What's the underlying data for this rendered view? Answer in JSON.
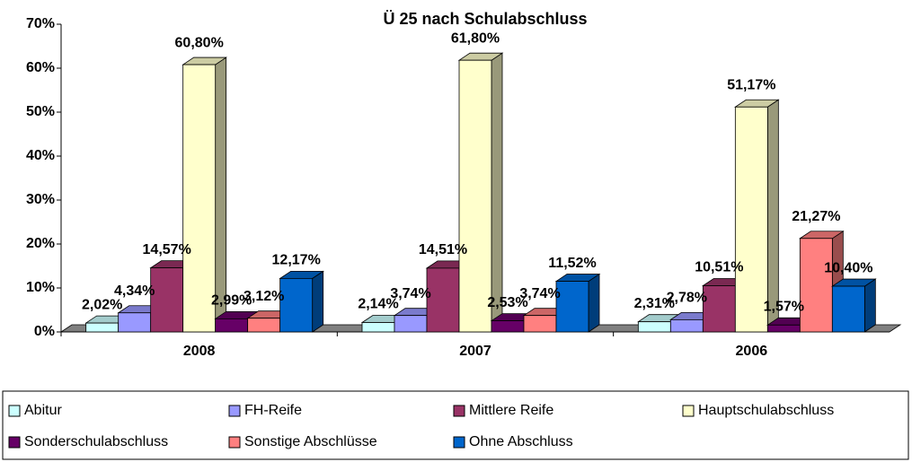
{
  "chart_data": {
    "type": "bar3d",
    "title": "Ü 25 nach Schulabschluss",
    "categories": [
      "2008",
      "2007",
      "2006"
    ],
    "ylim": [
      0,
      70
    ],
    "yticks": [
      {
        "value": 0,
        "label": "0%"
      },
      {
        "value": 10,
        "label": "10%"
      },
      {
        "value": 20,
        "label": "20%"
      },
      {
        "value": 30,
        "label": "30%"
      },
      {
        "value": 40,
        "label": "40%"
      },
      {
        "value": 50,
        "label": "50%"
      },
      {
        "value": 60,
        "label": "60%"
      },
      {
        "value": 70,
        "label": "70%"
      }
    ],
    "series": [
      {
        "name": "Abitur",
        "color": "#ccffff",
        "values": [
          2.02,
          2.14,
          2.31
        ],
        "value_labels": [
          "2,02%",
          "2,14%",
          "2,31%"
        ]
      },
      {
        "name": "FH-Reife",
        "color": "#9999ff",
        "values": [
          4.34,
          3.74,
          2.78
        ],
        "value_labels": [
          "4,34%",
          "3,74%",
          "2,78%"
        ]
      },
      {
        "name": "Mittlere Reife",
        "color": "#993366",
        "values": [
          14.57,
          14.51,
          10.51
        ],
        "value_labels": [
          "14,57%",
          "14,51%",
          "10,51%"
        ]
      },
      {
        "name": "Hauptschulabschluss",
        "color": "#ffffcc",
        "values": [
          60.8,
          61.8,
          51.17
        ],
        "value_labels": [
          "60,80%",
          "61,80%",
          "51,17%"
        ]
      },
      {
        "name": "Sonderschulabschluss",
        "color": "#660066",
        "values": [
          2.99,
          2.53,
          1.57
        ],
        "value_labels": [
          "2,99%",
          "2,53%",
          "1,57%"
        ]
      },
      {
        "name": "Sonstige Abschlüsse",
        "color": "#ff8080",
        "values": [
          3.12,
          3.74,
          21.27
        ],
        "value_labels": [
          "3,12%",
          "3,74%",
          "21,27%"
        ]
      },
      {
        "name": "Ohne Abschluss",
        "color": "#0066cc",
        "values": [
          12.17,
          11.52,
          10.4
        ],
        "value_labels": [
          "12,17%",
          "11,52%",
          "10,40%"
        ]
      }
    ]
  }
}
